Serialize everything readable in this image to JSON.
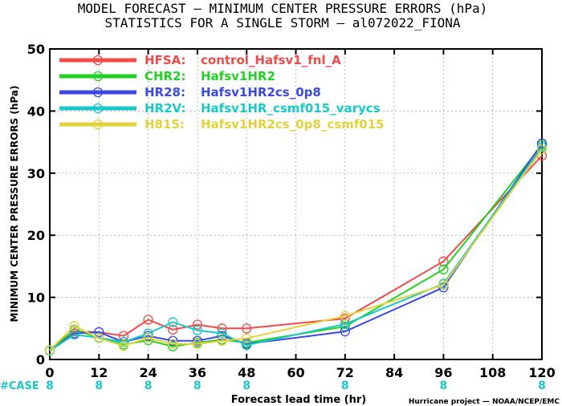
{
  "header": {
    "title_line1": "MODEL FORECAST — MINIMUM CENTER PRESSURE ERRORS (hPa)",
    "title_line2": "STATISTICS FOR A SINGLE STORM — al072022_FIONA"
  },
  "footer": {
    "case_label": "#CASE",
    "credit": "Hurricane project — NOAA/NCEP/EMC"
  },
  "chart_data": {
    "type": "line",
    "xlabel": "Forecast lead time (hr)",
    "ylabel": "MINIMUM CENTER PRESSURE ERRORS (hPa)",
    "xlim": [
      0,
      120
    ],
    "ylim": [
      0,
      50
    ],
    "xticks": [
      0,
      12,
      24,
      36,
      48,
      60,
      72,
      84,
      96,
      108,
      120
    ],
    "yticks": [
      0,
      10,
      20,
      30,
      40,
      50
    ],
    "grid": true,
    "legend_position": "top-left",
    "case_x": [
      0,
      12,
      24,
      36,
      48,
      72,
      96,
      120
    ],
    "case_counts": [
      8,
      8,
      8,
      8,
      8,
      8,
      8,
      8
    ],
    "case_color": "#19c8c8",
    "x": [
      0,
      6,
      12,
      18,
      24,
      30,
      36,
      42,
      48,
      72,
      96,
      120
    ],
    "series": [
      {
        "name": "HFSA:",
        "desc": "control_Hafsv1_fnl_A",
        "color": "#f04a4a",
        "values": [
          1.5,
          4.5,
          4.4,
          3.8,
          6.4,
          4.8,
          5.6,
          5.0,
          5.0,
          6.6,
          15.8,
          32.8
        ]
      },
      {
        "name": "CHR2:",
        "desc": "Hafsv1HR2",
        "color": "#22d222",
        "values": [
          1.5,
          4.8,
          3.5,
          2.4,
          3.1,
          2.1,
          2.7,
          3.2,
          2.7,
          5.3,
          14.5,
          34.5
        ]
      },
      {
        "name": "HR28:",
        "desc": "Hafsv1HR2cs_0p8",
        "color": "#3c48e4",
        "values": [
          1.4,
          4.2,
          4.4,
          2.8,
          3.8,
          3.0,
          3.0,
          3.8,
          2.5,
          4.5,
          11.6,
          34.8
        ]
      },
      {
        "name": "HR2V:",
        "desc": "Hafsv1HR_csmf015_varycs",
        "color": "#19c8c8",
        "values": [
          1.4,
          4.0,
          3.5,
          2.8,
          4.2,
          6.0,
          4.7,
          4.2,
          2.3,
          5.7,
          12.2,
          34.2
        ]
      },
      {
        "name": "H815:",
        "desc": "Hafsv1HR2cs_0p8_csmf015",
        "color": "#e3d23c",
        "values": [
          1.5,
          5.4,
          3.4,
          2.2,
          3.5,
          2.5,
          2.5,
          3.0,
          3.4,
          7.0,
          12.0,
          33.8
        ]
      }
    ]
  }
}
